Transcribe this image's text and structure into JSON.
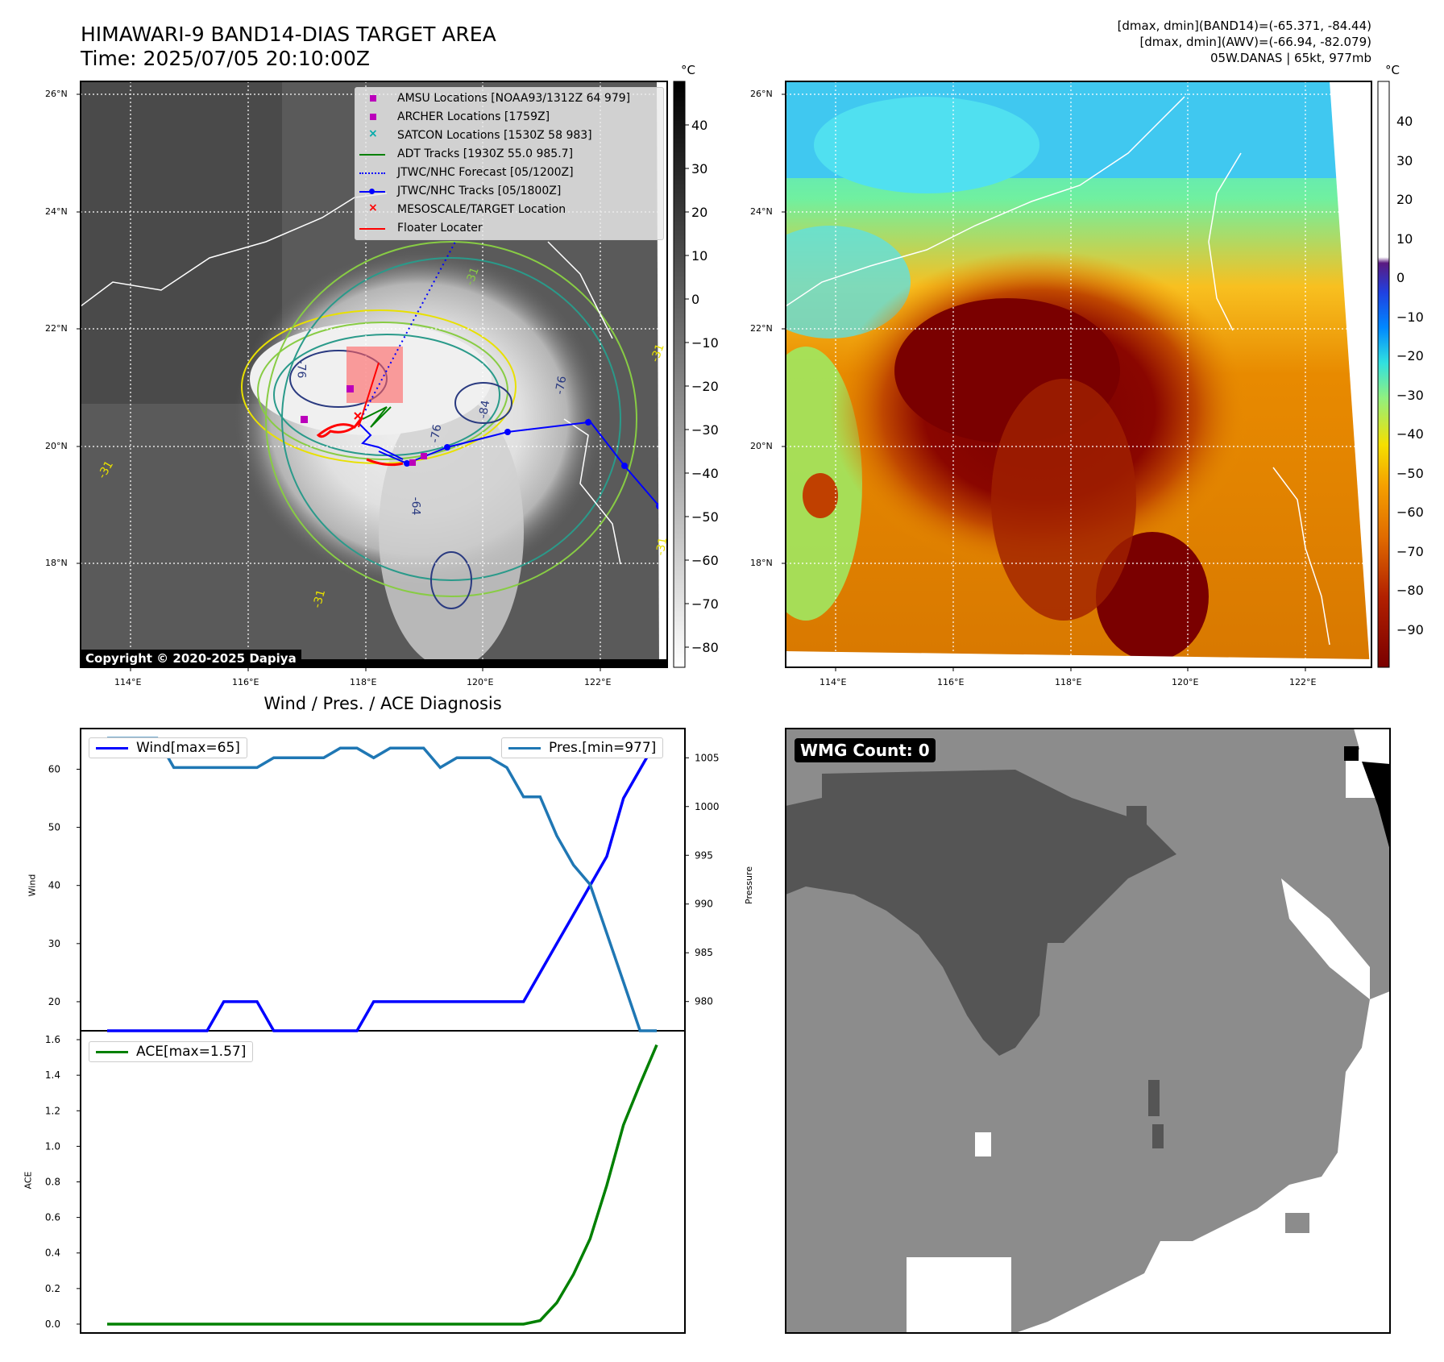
{
  "ir_panel": {
    "title_line1": "HIMAWARI-9 BAND14-DIAS TARGET AREA",
    "title_line2": "Time: 2025/07/05 20:10:00Z",
    "copyright": "Copyright © 2020-2025 Dapiya",
    "colorbar_unit": "°C",
    "colorbar_ticks": [
      "40",
      "30",
      "20",
      "10",
      "0",
      "−10",
      "−20",
      "−30",
      "−40",
      "−50",
      "−60",
      "−70",
      "−80"
    ],
    "lat_labels": [
      "26°N",
      "24°N",
      "22°N",
      "20°N",
      "18°N"
    ],
    "lon_labels": [
      "114°E",
      "116°E",
      "118°E",
      "120°E",
      "122°E"
    ],
    "legend": [
      {
        "label": "AMSU Locations [NOAA93/1312Z 64 979]",
        "marker": "square",
        "color": "#bb00bb"
      },
      {
        "label": "ARCHER Locations [1759Z]",
        "marker": "square",
        "color": "#bb00bb"
      },
      {
        "label": "SATCON Locations [1530Z 58 983]",
        "marker": "x",
        "color": "#00aaaa"
      },
      {
        "label": "ADT Tracks [1930Z 55.0 985.7]",
        "marker": "line",
        "color": "#008000"
      },
      {
        "label": "JTWC/NHC Forecast [05/1200Z]",
        "marker": "dotted",
        "color": "#0000ff"
      },
      {
        "label": "JTWC/NHC Tracks [05/1800Z]",
        "marker": "line-dot",
        "color": "#0000ff"
      },
      {
        "label": "MESOSCALE/TARGET Location",
        "marker": "x",
        "color": "#ff0000"
      },
      {
        "label": "Floater Locater",
        "marker": "line",
        "color": "#ff0000"
      }
    ],
    "contour_labels": [
      "-76",
      "-76",
      "-84",
      "-76",
      "-31",
      "-31",
      "-31",
      "-31",
      "-31",
      "-64"
    ]
  },
  "awv_panel": {
    "info_line1": "[dmax, dmin](BAND14)=(-65.371, -84.44)",
    "info_line2": "[dmax, dmin](AWV)=(-66.94, -82.079)",
    "info_line3": "05W.DANAS | 65kt, 977mb",
    "colorbar_unit": "°C",
    "colorbar_ticks": [
      "40",
      "30",
      "20",
      "10",
      "0",
      "−10",
      "−20",
      "−30",
      "−40",
      "−50",
      "−60",
      "−70",
      "−80",
      "−90"
    ],
    "lat_labels": [
      "26°N",
      "24°N",
      "22°N",
      "20°N",
      "18°N"
    ],
    "lon_labels": [
      "114°E",
      "116°E",
      "118°E",
      "120°E",
      "122°E"
    ]
  },
  "diagnosis": {
    "title": "Wind / Pres. / ACE Diagnosis",
    "wind_legend": "Wind[max=65]",
    "pres_legend": "Pres.[min=977]",
    "ace_legend": "ACE[max=1.57]",
    "wind_axis_label": "Wind",
    "pres_axis_label": "Pressure",
    "ace_axis_label": "ACE",
    "wind_ticks": [
      "60",
      "50",
      "40",
      "30",
      "20"
    ],
    "pres_ticks": [
      "1005",
      "1000",
      "995",
      "990",
      "985",
      "980"
    ],
    "ace_ticks": [
      "1.6",
      "1.4",
      "1.2",
      "1.0",
      "0.8",
      "0.6",
      "0.4",
      "0.2",
      "0.0"
    ]
  },
  "wmg_panel": {
    "label": "WMG Count: 0"
  },
  "chart_data": [
    {
      "type": "line",
      "title": "Wind / Pres. / ACE Diagnosis",
      "xlabel": "",
      "ylabel": "Wind",
      "ylim": [
        15,
        67
      ],
      "x": [
        0,
        1,
        2,
        3,
        4,
        5,
        6,
        7,
        8,
        9,
        10,
        11,
        12,
        13,
        14,
        15,
        16,
        17,
        18,
        19,
        20,
        21,
        22,
        23,
        24,
        25,
        26,
        27,
        28,
        29,
        30,
        31,
        32,
        33
      ],
      "series": [
        {
          "name": "Wind[max=65]",
          "color": "#0000ff",
          "values": [
            15,
            15,
            15,
            15,
            15,
            15,
            15,
            20,
            20,
            20,
            15,
            15,
            15,
            15,
            15,
            15,
            20,
            20,
            20,
            20,
            20,
            20,
            20,
            20,
            20,
            20,
            25,
            30,
            35,
            40,
            45,
            55,
            60,
            65
          ]
        }
      ]
    },
    {
      "type": "line",
      "ylabel": "Pressure",
      "ylim": [
        977,
        1008
      ],
      "x": [
        0,
        1,
        2,
        3,
        4,
        5,
        6,
        7,
        8,
        9,
        10,
        11,
        12,
        13,
        14,
        15,
        16,
        17,
        18,
        19,
        20,
        21,
        22,
        23,
        24,
        25,
        26,
        27,
        28,
        29,
        30,
        31,
        32,
        33
      ],
      "series": [
        {
          "name": "Pres.[min=977]",
          "color": "#1f77b4",
          "values": [
            1007,
            1007,
            1007,
            1007,
            1004,
            1004,
            1004,
            1004,
            1004,
            1004,
            1005,
            1005,
            1005,
            1005,
            1006,
            1006,
            1005,
            1006,
            1006,
            1006,
            1004,
            1005,
            1005,
            1005,
            1004,
            1001,
            1001,
            997,
            994,
            992,
            987,
            982,
            977,
            977
          ]
        }
      ]
    },
    {
      "type": "line",
      "ylabel": "ACE",
      "ylim": [
        -0.05,
        1.65
      ],
      "x": [
        0,
        1,
        2,
        3,
        4,
        5,
        6,
        7,
        8,
        9,
        10,
        11,
        12,
        13,
        14,
        15,
        16,
        17,
        18,
        19,
        20,
        21,
        22,
        23,
        24,
        25,
        26,
        27,
        28,
        29,
        30,
        31,
        32,
        33
      ],
      "series": [
        {
          "name": "ACE[max=1.57]",
          "color": "#008000",
          "values": [
            0,
            0,
            0,
            0,
            0,
            0,
            0,
            0,
            0,
            0,
            0,
            0,
            0,
            0,
            0,
            0,
            0,
            0,
            0,
            0,
            0,
            0,
            0,
            0,
            0,
            0,
            0.02,
            0.12,
            0.28,
            0.48,
            0.78,
            1.12,
            1.35,
            1.57
          ]
        }
      ]
    }
  ]
}
